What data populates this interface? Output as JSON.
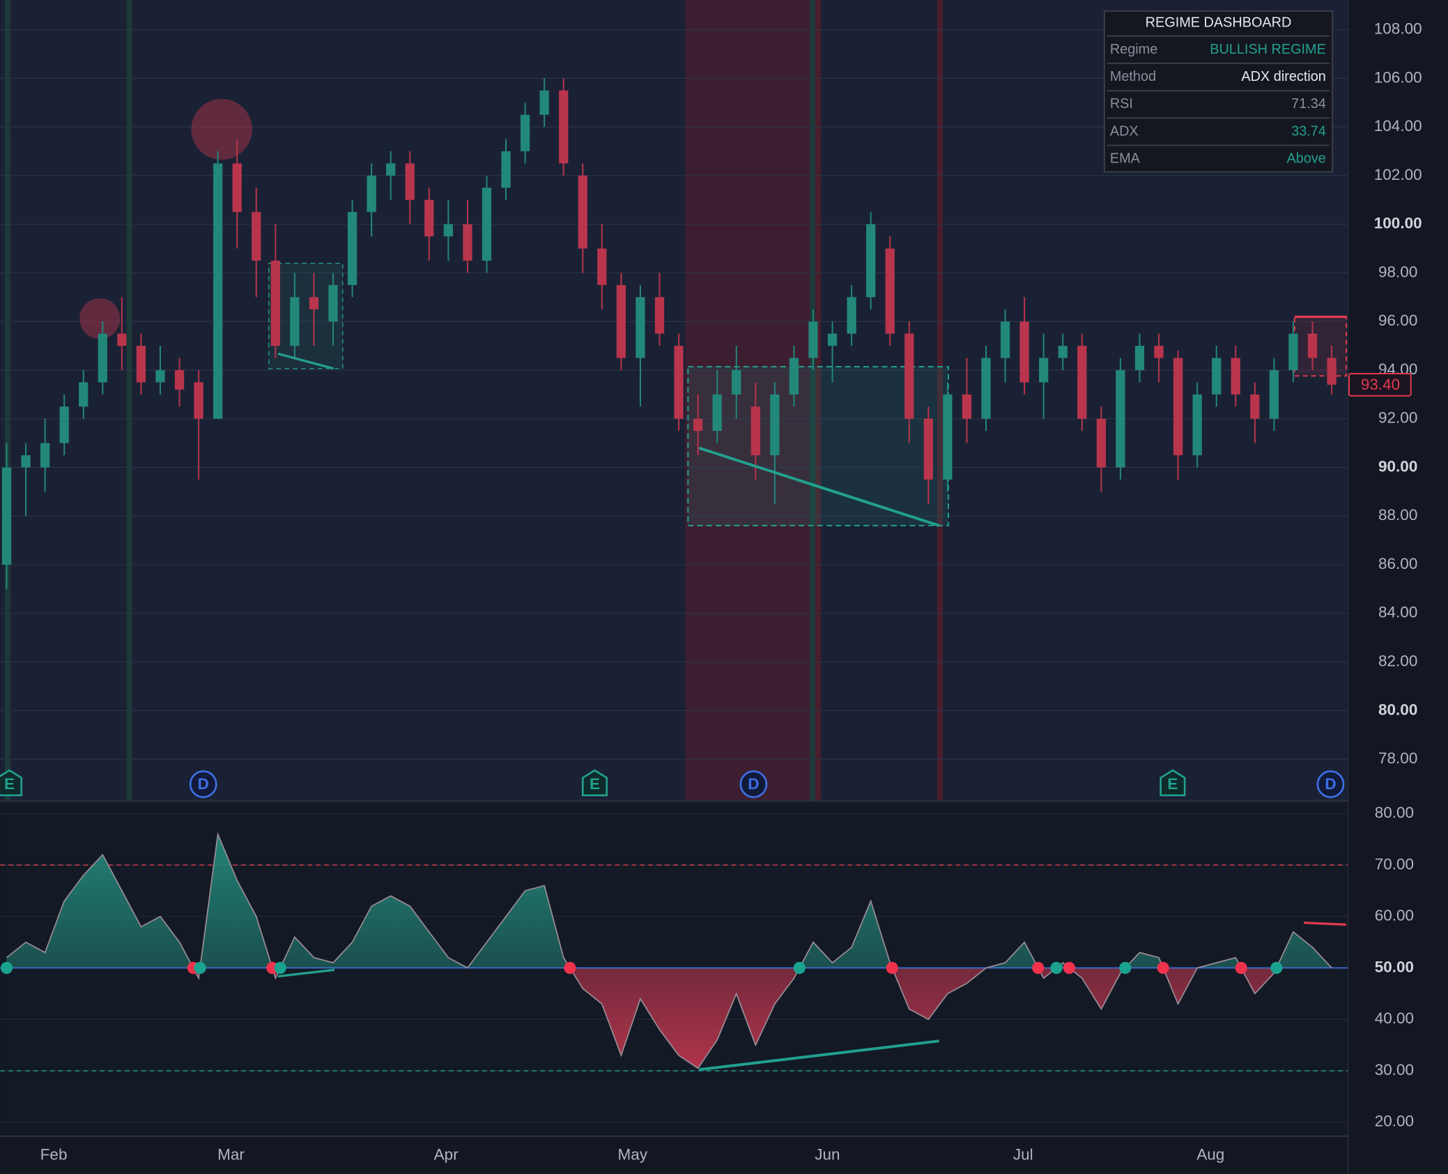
{
  "chart_data": [
    {
      "type": "candlestick",
      "open": [
        86,
        90,
        90,
        91,
        92.5,
        93.5,
        95.5,
        95,
        93.5,
        94,
        93.5,
        92,
        102.5,
        100.5,
        98.5,
        95,
        97,
        96,
        97.5,
        100.5,
        102,
        102.5,
        101,
        99.5,
        100,
        98.5,
        101.5,
        103,
        104.5,
        105.5,
        102,
        99,
        97.5,
        94.5,
        97,
        95,
        92,
        91.5,
        93,
        92.5,
        90.5,
        93,
        94.5,
        95,
        95.5,
        97,
        99,
        95.5,
        92,
        89.5,
        93,
        92,
        94.5,
        96,
        93.5,
        94.5,
        95,
        92,
        90,
        94,
        95,
        94.5,
        90.5,
        93,
        94.5,
        93,
        92,
        94,
        95.5,
        94.5
      ],
      "high": [
        91,
        91,
        92,
        93,
        94,
        96,
        97,
        95.5,
        95,
        94.5,
        94,
        103,
        103.5,
        101.5,
        100,
        98,
        98,
        98,
        101,
        102.5,
        103,
        103,
        101.5,
        101,
        101,
        102,
        103.5,
        105,
        106,
        106,
        102.5,
        100,
        98,
        97.5,
        98,
        95.5,
        93,
        94,
        95,
        93.5,
        93.5,
        95,
        96.5,
        96,
        97.5,
        100.5,
        99.5,
        96,
        92.5,
        93.5,
        94.5,
        95,
        96.5,
        97,
        95.5,
        95.5,
        95.5,
        92.5,
        94.5,
        95.5,
        95.5,
        94.8,
        93.5,
        95,
        95,
        93.5,
        94.5,
        96,
        96,
        95
      ],
      "low": [
        85,
        88,
        89,
        90.5,
        92,
        93,
        94,
        93,
        93,
        92.5,
        89.5,
        92,
        99,
        97,
        94.5,
        94.5,
        95,
        95,
        97,
        99.5,
        101,
        100,
        98.5,
        98.5,
        98,
        98,
        101,
        102.5,
        104,
        102,
        98,
        96.5,
        94,
        92.5,
        95,
        91.5,
        90.5,
        91,
        92,
        89.5,
        88.5,
        92.5,
        94,
        93.5,
        95,
        96.5,
        95,
        91,
        88.5,
        89,
        91,
        91.5,
        93.5,
        93,
        92,
        94,
        91.5,
        89,
        89.5,
        93.5,
        93.5,
        89.5,
        90,
        92.5,
        92.5,
        91,
        91.5,
        93.5,
        94,
        93
      ],
      "close": [
        90,
        90.5,
        91,
        92.5,
        93.5,
        95.5,
        95,
        93.5,
        94,
        93.2,
        92,
        102.5,
        100.5,
        98.5,
        95,
        97,
        96.5,
        97.5,
        100.5,
        102,
        102.5,
        101,
        99.5,
        100,
        98.5,
        101.5,
        103,
        104.5,
        105.5,
        102.5,
        99,
        97.5,
        94.5,
        97,
        95.5,
        92,
        91.5,
        93,
        94,
        90.5,
        93,
        94.5,
        96,
        95.5,
        97,
        100,
        95.5,
        92,
        89.5,
        93,
        92,
        94.5,
        96,
        93.5,
        94.5,
        95,
        92,
        90,
        94,
        95,
        94.5,
        90.5,
        93,
        94.5,
        93,
        92,
        94,
        95.5,
        94.5,
        93.4
      ],
      "up_color": "#22887a",
      "down_color": "#b8354c",
      "ylim": [
        76.29,
        109.22
      ],
      "yticks": [
        {
          "value": 78,
          "label": "78.00"
        },
        {
          "value": 80,
          "label": "80.00"
        },
        {
          "value": 82,
          "label": "82.00"
        },
        {
          "value": 84,
          "label": "84.00"
        },
        {
          "value": 86,
          "label": "86.00"
        },
        {
          "value": 88,
          "label": "88.00"
        },
        {
          "value": 90,
          "label": "90.00"
        },
        {
          "value": 92,
          "label": "92.00"
        },
        {
          "value": 94,
          "label": "94.00"
        },
        {
          "value": 96,
          "label": "96.00"
        },
        {
          "value": 98,
          "label": "98.00"
        },
        {
          "value": 100,
          "label": "100.00"
        },
        {
          "value": 102,
          "label": "102.00"
        },
        {
          "value": 104,
          "label": "104.00"
        },
        {
          "value": 106,
          "label": "106.00"
        },
        {
          "value": 108,
          "label": "108.00"
        }
      ],
      "grid": true,
      "last_price": {
        "value": 93.4,
        "label": "93.40"
      }
    },
    {
      "type": "line",
      "name": "RSI",
      "values": [
        52,
        55,
        53,
        63,
        68,
        72,
        65,
        58,
        60,
        55,
        48,
        76,
        67,
        60,
        48,
        56,
        52,
        51,
        55,
        62,
        64,
        62,
        57,
        52,
        50,
        55,
        60,
        65,
        66,
        52,
        46,
        43,
        33,
        44,
        38,
        33,
        30.5,
        36,
        45,
        35,
        43,
        48,
        55,
        51,
        54,
        63,
        51,
        42,
        40,
        45,
        47,
        50,
        51,
        55,
        48,
        51,
        48,
        42,
        49,
        53,
        52,
        43,
        50,
        51,
        52,
        45,
        49,
        57,
        54,
        50
      ],
      "up_color": "#22887a",
      "down_color": "#b8354c",
      "ylim": [
        17.3,
        82.3
      ],
      "yticks": [
        {
          "value": 20,
          "label": "20.00"
        },
        {
          "value": 30,
          "label": "30.00"
        },
        {
          "value": 40,
          "label": "40.00"
        },
        {
          "value": 50,
          "label": "50.00"
        },
        {
          "value": 60,
          "label": "60.00"
        },
        {
          "value": 70,
          "label": "70.00"
        },
        {
          "value": 80,
          "label": "80.00"
        }
      ],
      "overbought": 70,
      "midline": 50,
      "oversold": 30,
      "months": [
        "Feb",
        "Mar",
        "Apr",
        "May",
        "Jun",
        "Jul",
        "Aug"
      ]
    }
  ],
  "events": [
    "E",
    "D",
    "E",
    "D",
    "E",
    "D"
  ],
  "dashboard": {
    "title": "REGIME DASHBOARD",
    "rows": [
      {
        "label": "Regime",
        "value": "BULLISH REGIME",
        "color": "#22a08f"
      },
      {
        "label": "Method",
        "value": "ADX direction",
        "color": "#e6e8ee"
      },
      {
        "label": "RSI",
        "value": "71.34",
        "color": "#8a8f9c"
      },
      {
        "label": "ADX",
        "value": "33.74",
        "color": "#22a08f"
      },
      {
        "label": "EMA",
        "value": "Above",
        "color": "#22a08f"
      }
    ]
  }
}
